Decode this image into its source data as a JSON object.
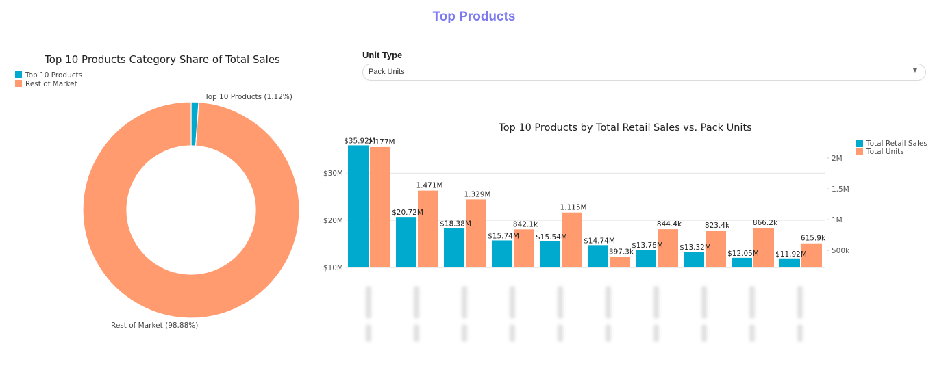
{
  "page": {
    "title": "Top Products"
  },
  "controls": {
    "unit_type_label": "Unit Type",
    "unit_type_selected": "Pack Units"
  },
  "colors": {
    "title": "#7b78f0",
    "sales": "#00a9ce",
    "units": "#ff9b6e",
    "grid": "#e3e3e3",
    "text": "#333333"
  },
  "chart_data": [
    {
      "type": "pie",
      "hole": true,
      "title": "Top 10 Products Category Share of Total Sales",
      "legend": [
        "Top 10 Products",
        "Rest of Market"
      ],
      "legend_position": "top-left",
      "slices": [
        {
          "label": "Top 10 Products",
          "value": 1.12,
          "text": "Top 10 Products (1.12%)"
        },
        {
          "label": "Rest of Market",
          "value": 98.88,
          "text": "Rest of Market (98.88%)"
        }
      ]
    },
    {
      "type": "bar",
      "title": "Top 10 Products by Total Retail Sales vs. Pack Units",
      "legend_position": "top-right",
      "categories": [
        "Product 1",
        "Product 2",
        "Product 3",
        "Product 4",
        "Product 5",
        "Product 6",
        "Product 7",
        "Product 8",
        "Product 9",
        "Product 10"
      ],
      "categories_obscured": true,
      "y_left": {
        "range": [
          10,
          37
        ],
        "unit": "$M",
        "ticks": [
          "$10M",
          "$20M",
          "$30M"
        ],
        "tick_values": [
          10,
          20,
          30
        ]
      },
      "y_right": {
        "range": [
          225000,
          2287000
        ],
        "ticks": [
          "500k",
          "1M",
          "1.5M",
          "2M"
        ],
        "tick_values": [
          500000,
          1000000,
          1500000,
          2000000
        ]
      },
      "grid": true,
      "series": [
        {
          "name": "Total Retail Sales",
          "axis": "left",
          "values": [
            35.92,
            20.72,
            18.38,
            15.74,
            15.54,
            14.74,
            13.76,
            13.32,
            12.05,
            11.92
          ],
          "labels": [
            "$35.92M",
            "$20.72M",
            "$18.38M",
            "$15.74M",
            "$15.54M",
            "$14.74M",
            "$13.76M",
            "$13.32M",
            "$12.05M",
            "$11.92M"
          ]
        },
        {
          "name": "Total Units",
          "axis": "right",
          "values": [
            2177000,
            1471000,
            1329000,
            842100,
            1115000,
            397300,
            844400,
            823400,
            866200,
            615900
          ],
          "labels": [
            "2.177M",
            "1.471M",
            "1.329M",
            "842.1k",
            "1.115M",
            "397.3k",
            "844.4k",
            "823.4k",
            "866.2k",
            "615.9k"
          ]
        }
      ]
    }
  ]
}
